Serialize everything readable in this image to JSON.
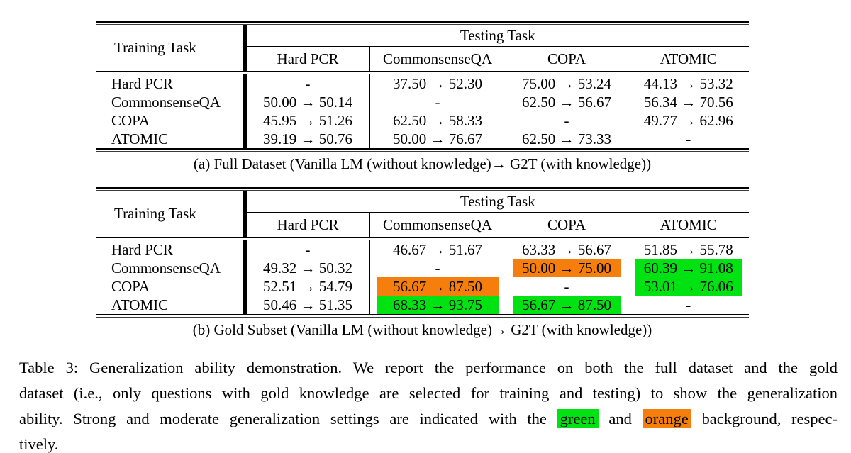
{
  "colors": {
    "green": "#00e212",
    "orange": "#f67e0d"
  },
  "header_labels": {
    "training_task": "Training Task",
    "testing_task": "Testing Task"
  },
  "testing_columns": [
    "Hard PCR",
    "CommonsenseQA",
    "COPA",
    "ATOMIC"
  ],
  "tables": [
    {
      "caption": "(a) Full Dataset (Vanilla LM (without knowledge)→ G2T (with knowledge))",
      "rows": [
        {
          "label": "Hard PCR",
          "cells": [
            {
              "text": "-"
            },
            {
              "text": "37.50 → 52.30"
            },
            {
              "text": "75.00 → 53.24"
            },
            {
              "text": "44.13 → 53.32"
            }
          ]
        },
        {
          "label": "CommonsenseQA",
          "cells": [
            {
              "text": "50.00 → 50.14"
            },
            {
              "text": "-"
            },
            {
              "text": "62.50 → 56.67"
            },
            {
              "text": "56.34 → 70.56"
            }
          ]
        },
        {
          "label": "COPA",
          "cells": [
            {
              "text": "45.95 → 51.26"
            },
            {
              "text": "62.50 → 58.33"
            },
            {
              "text": "-"
            },
            {
              "text": "49.77 → 62.96"
            }
          ]
        },
        {
          "label": "ATOMIC",
          "cells": [
            {
              "text": "39.19 → 50.76"
            },
            {
              "text": "50.00 → 76.67"
            },
            {
              "text": "62.50 → 73.33"
            },
            {
              "text": "-"
            }
          ]
        }
      ]
    },
    {
      "caption": "(b) Gold Subset (Vanilla LM (without knowledge)→ G2T (with knowledge))",
      "rows": [
        {
          "label": "Hard PCR",
          "cells": [
            {
              "text": "-"
            },
            {
              "text": "46.67 → 51.67"
            },
            {
              "text": "63.33 → 56.67"
            },
            {
              "text": "51.85 → 55.78"
            }
          ]
        },
        {
          "label": "CommonsenseQA",
          "cells": [
            {
              "text": "49.32 → 50.32"
            },
            {
              "text": "-"
            },
            {
              "text": "50.00 → 75.00",
              "bg": "orange"
            },
            {
              "text": "60.39 → 91.08",
              "bg": "green"
            }
          ]
        },
        {
          "label": "COPA",
          "cells": [
            {
              "text": "52.51 → 54.79"
            },
            {
              "text": "56.67 → 87.50",
              "bg": "orange"
            },
            {
              "text": "-"
            },
            {
              "text": "53.01 → 76.06",
              "bg": "green"
            }
          ]
        },
        {
          "label": "ATOMIC",
          "cells": [
            {
              "text": "50.46 → 51.35"
            },
            {
              "text": "68.33 → 93.75",
              "bg": "green"
            },
            {
              "text": "56.67 → 87.50",
              "bg": "green"
            },
            {
              "text": "-"
            }
          ]
        }
      ]
    }
  ],
  "main_caption": {
    "line1": "Table 3: Generalization ability demonstration. We report the performance on both the full dataset and the gold",
    "line2": "dataset (i.e., only questions with gold knowledge are selected for training and testing) to show the generalization",
    "line3_pre": "ability. Strong and moderate generalization settings are indicated with the",
    "line3_green_word": "green",
    "line3_and": "and",
    "line3_orange_word": "orange",
    "line3_post": "background, respec-",
    "line4": "tively."
  }
}
